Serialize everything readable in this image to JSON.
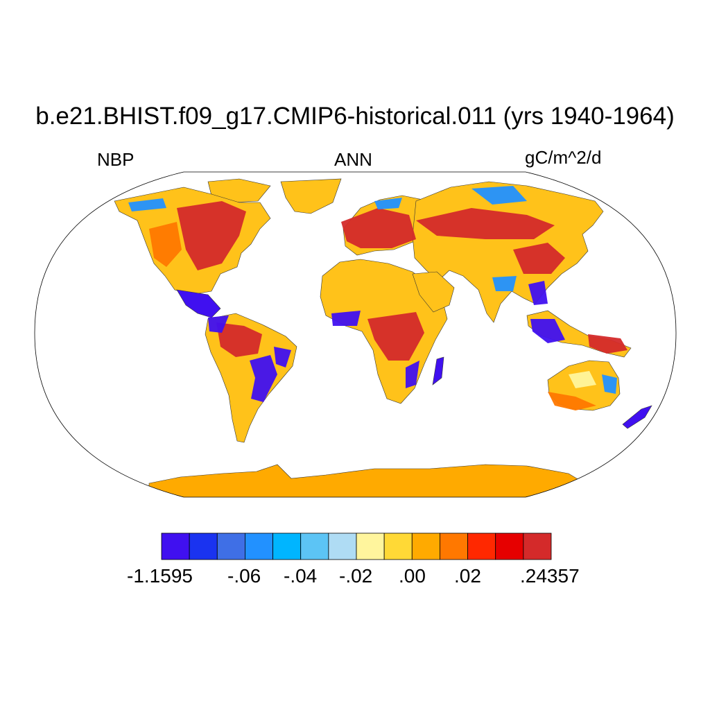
{
  "title": "b.e21.BHIST.f09_g17.CMIP6-historical.011 (yrs 1940-1964)",
  "left_string": "NBP",
  "center_string": "ANN",
  "right_string": "gC/m^2/d",
  "colorbar": {
    "colors": [
      "#4010f0",
      "#1a33f0",
      "#3f6fe6",
      "#2291ff",
      "#00b5ff",
      "#5cc4f5",
      "#afdcf4",
      "#fff59d",
      "#ffd936",
      "#ffaa00",
      "#ff7800",
      "#ff2800",
      "#e60000",
      "#d42a2a"
    ],
    "labels": [
      "-1.1595",
      "-.06",
      "-.04",
      "-.02",
      ".00",
      ".02",
      ".24357"
    ]
  },
  "map_colors": {
    "ocean": "#ffffff",
    "antarctica": "#ffaa00",
    "base_land": "#ffc21a",
    "positive_strong": "#d42a2a",
    "positive_mid": "#ff7800",
    "negative_strong": "#4010f0",
    "negative_mid": "#2291ff",
    "neutral_light": "#fff59d"
  }
}
